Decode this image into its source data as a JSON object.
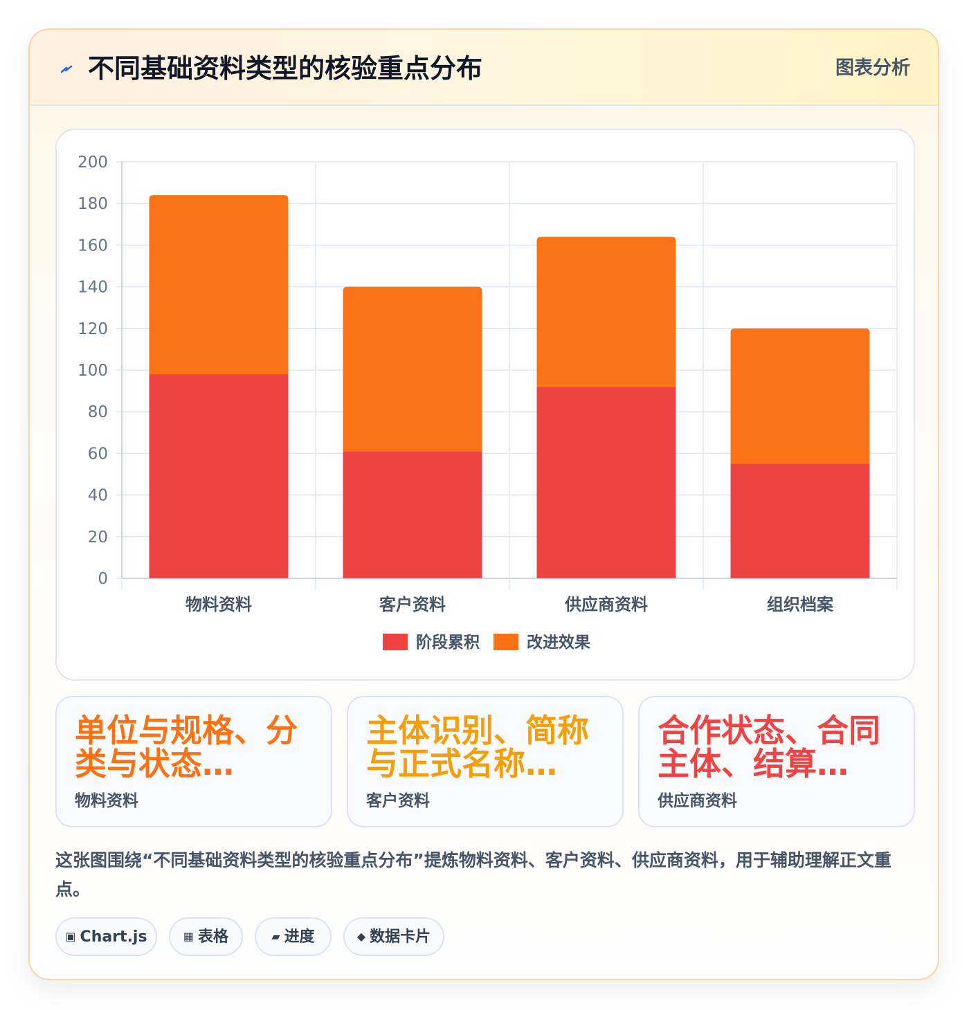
{
  "header": {
    "title": "不同基础资料类型的核验重点分布",
    "tag": "图表分析",
    "icon": "lightning-icon"
  },
  "chart_data": {
    "type": "bar",
    "stacked": true,
    "categories": [
      "物料资料",
      "客户资料",
      "供应商资料",
      "组织档案"
    ],
    "series": [
      {
        "name": "阶段累积",
        "values": [
          98,
          61,
          92,
          55
        ],
        "color": "#ef4444"
      },
      {
        "name": "改进效果",
        "values": [
          86,
          79,
          72,
          65
        ],
        "color": "#f97316"
      }
    ],
    "ylim": [
      0,
      200
    ],
    "yticks": [
      "0",
      "20",
      "40",
      "60",
      "80",
      "100",
      "120",
      "140",
      "160",
      "180",
      "200"
    ],
    "grid": true,
    "legend": "bottom"
  },
  "stats": [
    {
      "value": "单位与规格、分类与状态…",
      "label": "物料资料",
      "color": "#f97316"
    },
    {
      "value": "主体识别、简称与正式名称…",
      "label": "客户资料",
      "color": "#f59e0b"
    },
    {
      "value": "合作状态、合同主体、结算…",
      "label": "供应商资料",
      "color": "#ef4444"
    }
  ],
  "description": "这张图围绕“不同基础资料类型的核验重点分布”提炼物料资料、客户资料、供应商资料，用于辅助理解正文重点。",
  "tags": [
    {
      "icon": "▣",
      "icon_name": "chart-icon",
      "label": "Chart.js"
    },
    {
      "icon": "▦",
      "icon_name": "table-icon",
      "label": "表格"
    },
    {
      "icon": "▰",
      "icon_name": "progress-icon",
      "label": "进度"
    },
    {
      "icon": "◆",
      "icon_name": "diamond-icon",
      "label": "数据卡片"
    }
  ]
}
